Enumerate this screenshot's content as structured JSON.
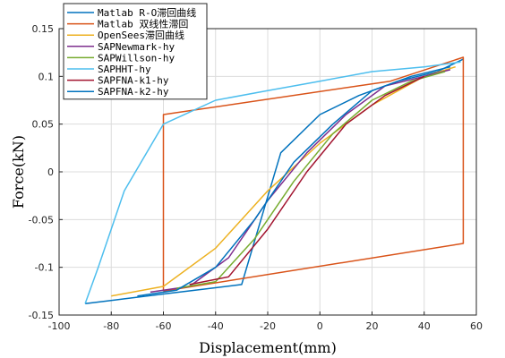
{
  "chart_data": {
    "type": "line",
    "title": "",
    "xlabel": "Displacement(mm)",
    "ylabel": "Force(kN)",
    "xlim": [
      -100,
      60
    ],
    "ylim": [
      -0.15,
      0.15
    ],
    "xticks": [
      "-100",
      "-80",
      "-60",
      "-40",
      "-20",
      "0",
      "20",
      "40",
      "60"
    ],
    "yticks": [
      "0.15",
      "0.1",
      "0.05",
      "0",
      "-0.05",
      "-0.1",
      "-0.15"
    ],
    "grid": true,
    "legend_position": "top-left",
    "series": [
      {
        "name": "Matlab R-O滞回曲线",
        "color": "#0072BD",
        "x": [
          -90,
          -75,
          -60,
          -45,
          -30,
          -15,
          0,
          15,
          30,
          45,
          55
        ],
        "y": [
          -0.138,
          -0.133,
          -0.128,
          -0.123,
          -0.118,
          0.02,
          0.06,
          0.08,
          0.095,
          0.105,
          0.118
        ]
      },
      {
        "name": "Matlab 双线性滞回",
        "color": "#D95319",
        "x": [
          -60,
          -60,
          27,
          55,
          55,
          -60
        ],
        "y": [
          -0.125,
          0.06,
          0.095,
          0.12,
          -0.075,
          -0.125
        ]
      },
      {
        "name": "OpenSees滞回曲线",
        "color": "#EDB120",
        "x": [
          -80,
          -60,
          -40,
          -20,
          0,
          20,
          40,
          52
        ],
        "y": [
          -0.13,
          -0.12,
          -0.08,
          -0.02,
          0.03,
          0.07,
          0.1,
          0.11
        ]
      },
      {
        "name": "SAPNewmark-hy",
        "color": "#7E2F8E",
        "x": [
          -65,
          -50,
          -35,
          -20,
          -5,
          10,
          25,
          40,
          50
        ],
        "y": [
          -0.126,
          -0.12,
          -0.09,
          -0.03,
          0.02,
          0.06,
          0.09,
          0.1,
          0.107
        ]
      },
      {
        "name": "SAPWillson-hy",
        "color": "#77AC30",
        "x": [
          -55,
          -40,
          -25,
          -10,
          5,
          20,
          35,
          48
        ],
        "y": [
          -0.122,
          -0.115,
          -0.07,
          -0.01,
          0.04,
          0.075,
          0.095,
          0.105
        ]
      },
      {
        "name": "SAPHHT-hy",
        "color": "#4DBEEE",
        "x": [
          -90,
          -85,
          -75,
          -60,
          -40,
          -20,
          0,
          20,
          40,
          54
        ],
        "y": [
          -0.138,
          -0.1,
          -0.02,
          0.05,
          0.075,
          0.085,
          0.095,
          0.105,
          0.11,
          0.115
        ]
      },
      {
        "name": "SAPFNA-k1-hy",
        "color": "#A2142F",
        "x": [
          -50,
          -35,
          -20,
          -5,
          10,
          25,
          40
        ],
        "y": [
          -0.118,
          -0.11,
          -0.06,
          0.0,
          0.05,
          0.08,
          0.1
        ]
      },
      {
        "name": "SAPFNA-k2-hy",
        "color": "#0072BD",
        "x": [
          -70,
          -55,
          -40,
          -25,
          -10,
          5,
          20,
          35,
          50
        ],
        "y": [
          -0.13,
          -0.124,
          -0.1,
          -0.05,
          0.01,
          0.05,
          0.085,
          0.1,
          0.11
        ]
      }
    ]
  }
}
